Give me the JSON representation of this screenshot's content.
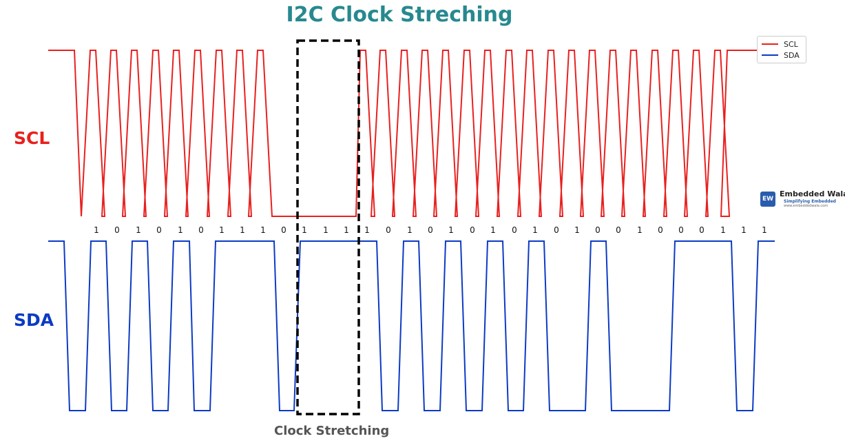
{
  "title": "I2C Clock Streching",
  "signals": {
    "scl": {
      "label": "SCL",
      "color": "#e8201e"
    },
    "sda": {
      "label": "SDA",
      "color": "#0b3bc4"
    }
  },
  "legend": {
    "items": [
      {
        "label": "SCL",
        "color": "#e8201e"
      },
      {
        "label": "SDA",
        "color": "#0b3bc4"
      }
    ]
  },
  "bits": [
    "1",
    "0",
    "1",
    "0",
    "1",
    "0",
    "1",
    "1",
    "1",
    "0",
    "1",
    "1",
    "1",
    "1",
    "0",
    "1",
    "0",
    "1",
    "0",
    "1",
    "0",
    "1",
    "0",
    "1",
    "0",
    "0",
    "1",
    "0",
    "0",
    "0",
    "1",
    "1",
    "1"
  ],
  "stretch": {
    "label": "Clock Stretching"
  },
  "logo": {
    "icon_text": "EW",
    "name": "Embedded Wala",
    "tagline": "Simplifying Embedded",
    "url": "www.embeddedwala.com"
  }
}
